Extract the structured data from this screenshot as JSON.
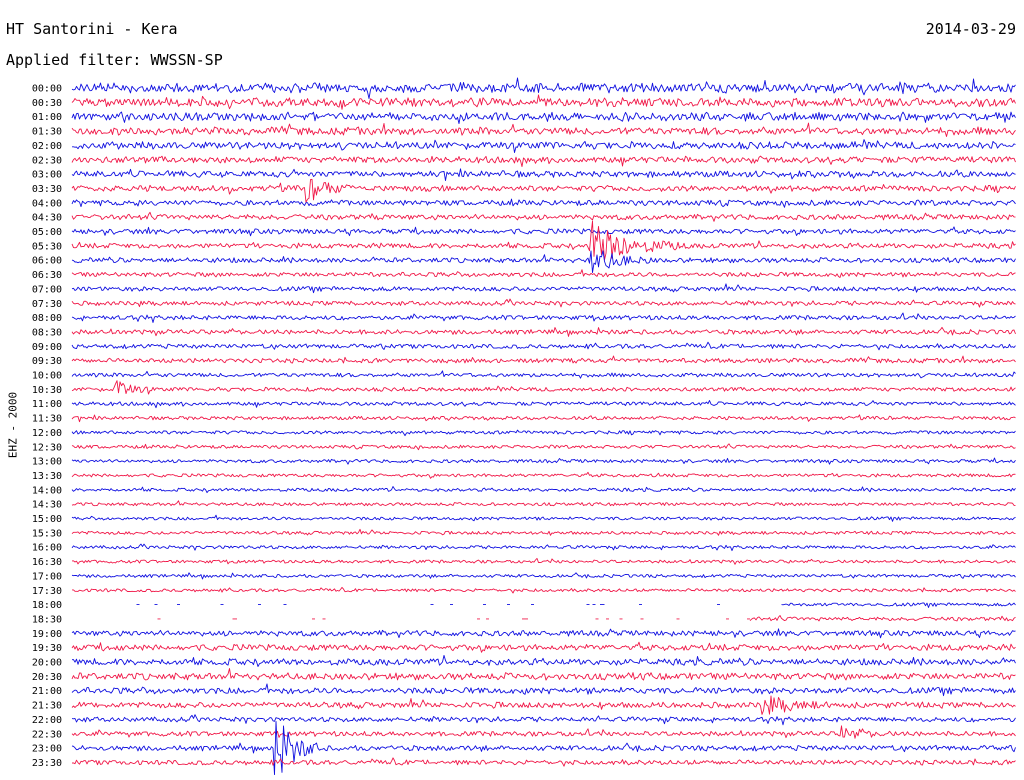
{
  "header": {
    "title": "HT Santorini - Kera",
    "date": "2014-03-29",
    "filter_label": "Applied filter:",
    "filter_value": "WWSSN-SP"
  },
  "channel_label": "EHZ - 2000",
  "chart_data": {
    "type": "helicorder",
    "row_interval_minutes": 30,
    "trace_colors": [
      "#1010e0",
      "#f01848"
    ],
    "rows": [
      {
        "label": "00:00",
        "noise": 1.0
      },
      {
        "label": "00:30",
        "noise": 0.9
      },
      {
        "label": "01:00",
        "noise": 0.85
      },
      {
        "label": "01:30",
        "noise": 0.75
      },
      {
        "label": "02:00",
        "noise": 0.7
      },
      {
        "label": "02:30",
        "noise": 0.6
      },
      {
        "label": "03:00",
        "noise": 0.55
      },
      {
        "label": "03:30",
        "noise": 0.5
      },
      {
        "label": "04:00",
        "noise": 0.45
      },
      {
        "label": "04:30",
        "noise": 0.42
      },
      {
        "label": "05:00",
        "noise": 0.4
      },
      {
        "label": "05:30",
        "noise": 0.38
      },
      {
        "label": "06:00",
        "noise": 0.36
      },
      {
        "label": "06:30",
        "noise": 0.3
      },
      {
        "label": "07:00",
        "noise": 0.3
      },
      {
        "label": "07:30",
        "noise": 0.28
      },
      {
        "label": "08:00",
        "noise": 0.3
      },
      {
        "label": "08:30",
        "noise": 0.32
      },
      {
        "label": "09:00",
        "noise": 0.28
      },
      {
        "label": "09:30",
        "noise": 0.3
      },
      {
        "label": "10:00",
        "noise": 0.22
      },
      {
        "label": "10:30",
        "noise": 0.22
      },
      {
        "label": "11:00",
        "noise": 0.2
      },
      {
        "label": "11:30",
        "noise": 0.15
      },
      {
        "label": "12:00",
        "noise": 0.14
      },
      {
        "label": "12:30",
        "noise": 0.13
      },
      {
        "label": "13:00",
        "noise": 0.13
      },
      {
        "label": "13:30",
        "noise": 0.12
      },
      {
        "label": "14:00",
        "noise": 0.12
      },
      {
        "label": "14:30",
        "noise": 0.1
      },
      {
        "label": "15:00",
        "noise": 0.1
      },
      {
        "label": "15:30",
        "noise": 0.12
      },
      {
        "label": "16:00",
        "noise": 0.12
      },
      {
        "label": "16:30",
        "noise": 0.1
      },
      {
        "label": "17:00",
        "noise": 0.1
      },
      {
        "label": "17:30",
        "noise": 0.1
      },
      {
        "label": "18:00",
        "noise": 0.12
      },
      {
        "label": "18:30",
        "noise": 0.2
      },
      {
        "label": "19:00",
        "noise": 0.45
      },
      {
        "label": "19:30",
        "noise": 0.55
      },
      {
        "label": "20:00",
        "noise": 0.6
      },
      {
        "label": "20:30",
        "noise": 0.65
      },
      {
        "label": "21:00",
        "noise": 0.55
      },
      {
        "label": "21:30",
        "noise": 0.5
      },
      {
        "label": "22:00",
        "noise": 0.35
      },
      {
        "label": "22:30",
        "noise": 0.35
      },
      {
        "label": "23:00",
        "noise": 0.4
      },
      {
        "label": "23:30",
        "noise": 0.35
      }
    ],
    "events": [
      {
        "row": "03:30",
        "minute": 7.5,
        "amplitude": 2.2,
        "duration_min": 1.5
      },
      {
        "row": "05:30",
        "minute": 16.5,
        "amplitude": 4.0,
        "duration_min": 3.0
      },
      {
        "row": "06:00",
        "minute": 16.5,
        "amplitude": 2.2,
        "duration_min": 2.0
      },
      {
        "row": "10:30",
        "minute": 1.4,
        "amplitude": 1.6,
        "duration_min": 1.2
      },
      {
        "row": "21:30",
        "minute": 22.0,
        "amplitude": 1.4,
        "duration_min": 2.5
      },
      {
        "row": "22:30",
        "minute": 24.5,
        "amplitude": 1.2,
        "duration_min": 1.5
      },
      {
        "row": "23:00",
        "minute": 6.5,
        "amplitude": 5.5,
        "duration_min": 1.5
      }
    ],
    "gaps": [
      {
        "row": "18:00",
        "from_minute": 0.0,
        "to_minute": 22.5
      },
      {
        "row": "18:30",
        "from_minute": 0.0,
        "to_minute": 21.5
      }
    ]
  }
}
